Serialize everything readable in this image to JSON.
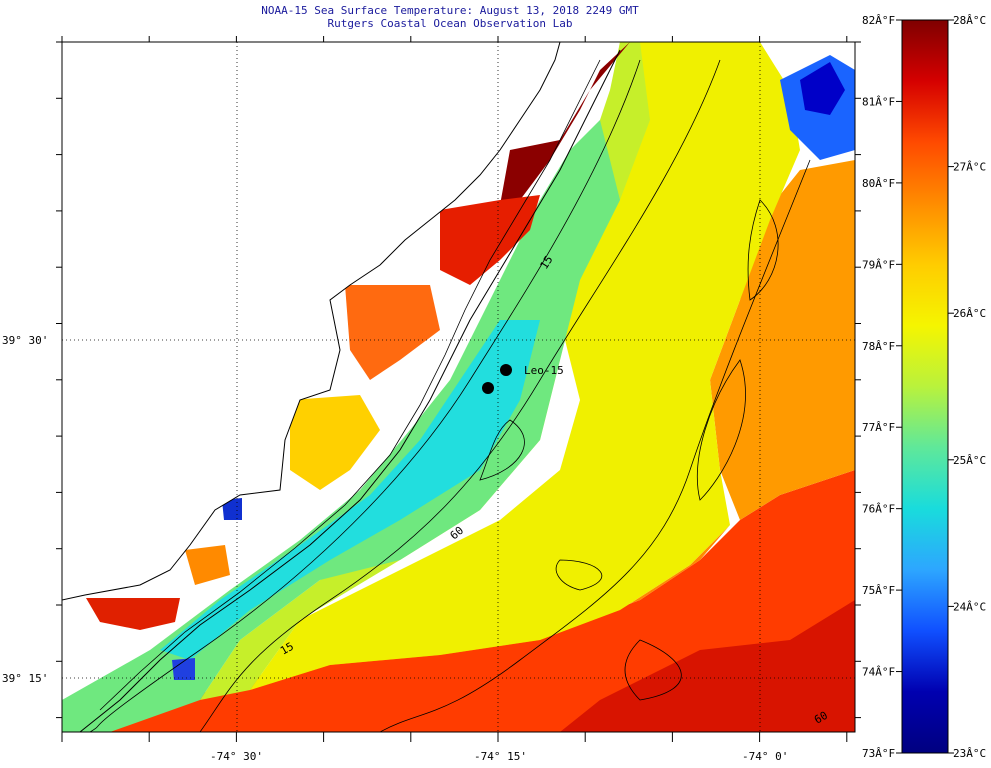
{
  "title_line1": "NOAA-15 Sea Surface Temperature:  August 13, 2018 2249 GMT",
  "title_line2": "Rutgers Coastal Ocean Observation Lab",
  "station_label": "Leo-15",
  "contour_labels": [
    "15",
    "15",
    "60",
    "60"
  ],
  "lon_ticks": [
    {
      "value": -74.5,
      "label": "-74° 30'"
    },
    {
      "value": -74.25,
      "label": "-74° 15'"
    },
    {
      "value": -74.0,
      "label": "-74° 0'"
    }
  ],
  "lat_ticks": [
    {
      "value": 39.5,
      "label": "39° 30'"
    },
    {
      "value": 39.25,
      "label": "39° 15'"
    }
  ],
  "colorbar": {
    "fahrenheit": [
      {
        "value": 82,
        "label": "82Â°F"
      },
      {
        "value": 81,
        "label": "81Â°F"
      },
      {
        "value": 80,
        "label": "80Â°F"
      },
      {
        "value": 79,
        "label": "79Â°F"
      },
      {
        "value": 78,
        "label": "78Â°F"
      },
      {
        "value": 77,
        "label": "77Â°F"
      },
      {
        "value": 76,
        "label": "76Â°F"
      },
      {
        "value": 75,
        "label": "75Â°F"
      },
      {
        "value": 74,
        "label": "74Â°F"
      },
      {
        "value": 73,
        "label": "73Â°F"
      }
    ],
    "celsius": [
      {
        "value": 28,
        "label": "28Â°C"
      },
      {
        "value": 27,
        "label": "27Â°C"
      },
      {
        "value": 26,
        "label": "26Â°C"
      },
      {
        "value": 25,
        "label": "25Â°C"
      },
      {
        "value": 24,
        "label": "24Â°C"
      },
      {
        "value": 23,
        "label": "23Â°C"
      }
    ],
    "gradient_colors": [
      "#7f0000",
      "#d50000",
      "#ff4a00",
      "#ff8c00",
      "#ffcc00",
      "#f5f500",
      "#b9f23c",
      "#5fe89a",
      "#19dcdc",
      "#2da6ff",
      "#1050ff",
      "#0000b0",
      "#000080"
    ]
  }
}
